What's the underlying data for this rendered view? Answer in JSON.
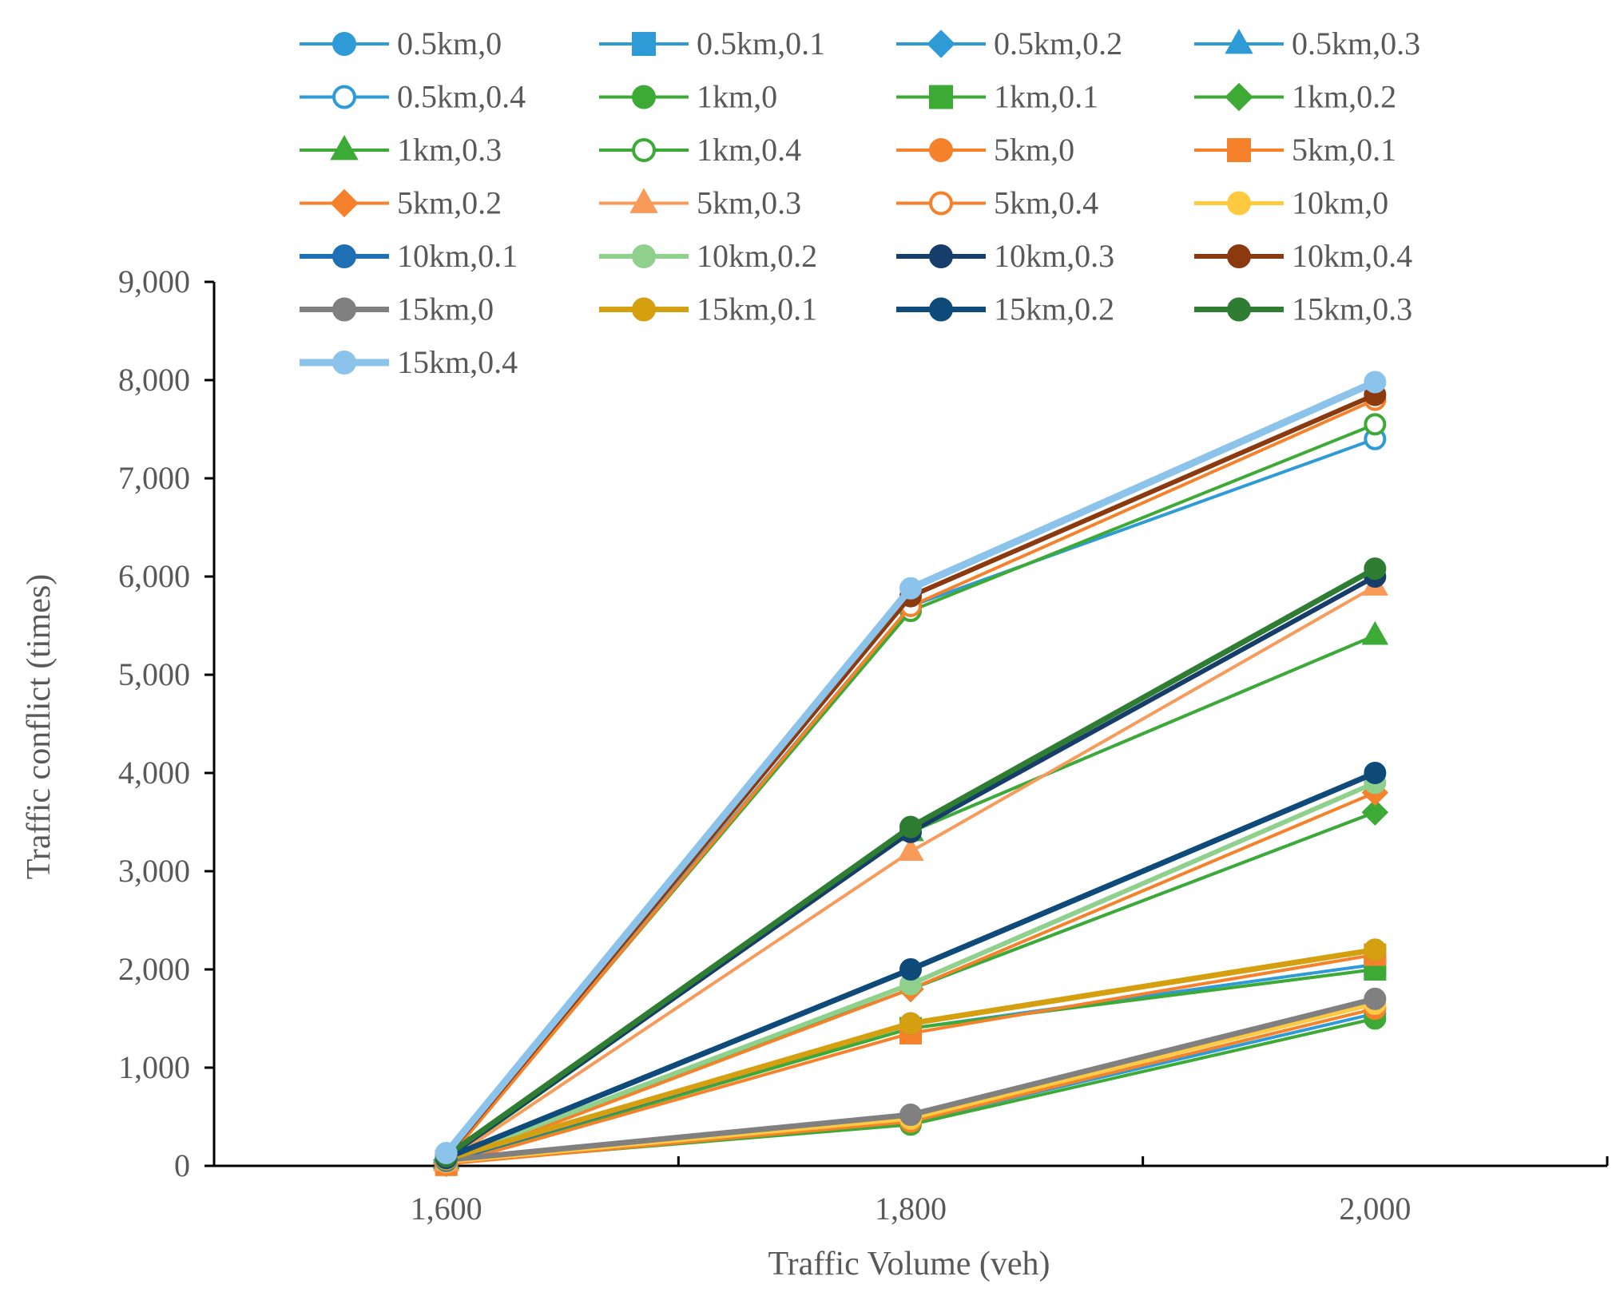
{
  "chart_data": {
    "type": "line",
    "title": "",
    "xlabel": "Traffic Volume (veh)",
    "ylabel": "Traffic conflict (times)",
    "x": [
      1600,
      1800,
      2000
    ],
    "x_tick_labels": [
      "1,600",
      "1,800",
      "2,000"
    ],
    "xlim": [
      1500,
      2100
    ],
    "ylim": [
      0,
      9000
    ],
    "y_tick_labels": [
      "0",
      "1,000",
      "2,000",
      "3,000",
      "4,000",
      "5,000",
      "6,000",
      "7,000",
      "8,000",
      "9,000"
    ],
    "grid": false,
    "legend_position": "top",
    "series": [
      {
        "name": "0.5km,0",
        "values": [
          50,
          450,
          1550
        ],
        "color": "#2E9BD6",
        "marker": "circle",
        "filled": true,
        "line_width": 4
      },
      {
        "name": "0.5km,0.1",
        "values": [
          50,
          1400,
          2050
        ],
        "color": "#2E9BD6",
        "marker": "square",
        "filled": true,
        "line_width": 4
      },
      {
        "name": "0.5km,0.2",
        "values": [
          60,
          1800,
          3600
        ],
        "color": "#2E9BD6",
        "marker": "diamond",
        "filled": true,
        "line_width": 4
      },
      {
        "name": "0.5km,0.3",
        "values": [
          70,
          3400,
          5400
        ],
        "color": "#2E9BD6",
        "marker": "triangle",
        "filled": true,
        "line_width": 4
      },
      {
        "name": "0.5km,0.4",
        "values": [
          80,
          5700,
          7400
        ],
        "color": "#2E9BD6",
        "marker": "circle",
        "filled": false,
        "line_width": 4
      },
      {
        "name": "1km,0",
        "values": [
          30,
          420,
          1500
        ],
        "color": "#3DAA35",
        "marker": "circle",
        "filled": true,
        "line_width": 4
      },
      {
        "name": "1km,0.1",
        "values": [
          30,
          1400,
          2000
        ],
        "color": "#3DAA35",
        "marker": "square",
        "filled": true,
        "line_width": 4
      },
      {
        "name": "1km,0.2",
        "values": [
          40,
          1800,
          3600
        ],
        "color": "#3DAA35",
        "marker": "diamond",
        "filled": true,
        "line_width": 4
      },
      {
        "name": "1km,0.3",
        "values": [
          60,
          3400,
          5400
        ],
        "color": "#3DAA35",
        "marker": "triangle",
        "filled": true,
        "line_width": 4
      },
      {
        "name": "1km,0.4",
        "values": [
          70,
          5650,
          7550
        ],
        "color": "#3DAA35",
        "marker": "circle",
        "filled": false,
        "line_width": 4
      },
      {
        "name": "5km,0",
        "values": [
          20,
          450,
          1600
        ],
        "color": "#F5822A",
        "marker": "circle",
        "filled": true,
        "line_width": 4
      },
      {
        "name": "5km,0.1",
        "values": [
          10,
          1350,
          2150
        ],
        "color": "#F5822A",
        "marker": "square",
        "filled": true,
        "line_width": 4
      },
      {
        "name": "5km,0.2",
        "values": [
          20,
          1800,
          3800
        ],
        "color": "#F5822A",
        "marker": "diamond",
        "filled": true,
        "line_width": 4
      },
      {
        "name": "5km,0.3",
        "values": [
          40,
          3200,
          5900
        ],
        "color": "#F79A5A",
        "marker": "triangle",
        "filled": true,
        "line_width": 4
      },
      {
        "name": "5km,0.4",
        "values": [
          50,
          5700,
          7800
        ],
        "color": "#F5822A",
        "marker": "circle",
        "filled": false,
        "line_width": 4
      },
      {
        "name": "10km,0",
        "values": [
          40,
          480,
          1650
        ],
        "color": "#FFC940",
        "marker": "circle",
        "filled": true,
        "line_width": 5
      },
      {
        "name": "10km,0.1",
        "values": [
          50,
          1450,
          2200
        ],
        "color": "#1F6FB5",
        "marker": "circle",
        "filled": true,
        "line_width": 6
      },
      {
        "name": "10km,0.2",
        "values": [
          60,
          1850,
          3900
        ],
        "color": "#8FD18C",
        "marker": "circle",
        "filled": true,
        "line_width": 6
      },
      {
        "name": "10km,0.3",
        "values": [
          80,
          3400,
          6000
        ],
        "color": "#173E6B",
        "marker": "circle",
        "filled": true,
        "line_width": 6
      },
      {
        "name": "10km,0.4",
        "values": [
          100,
          5800,
          7850
        ],
        "color": "#8B3A10",
        "marker": "circle",
        "filled": true,
        "line_width": 6
      },
      {
        "name": "15km,0",
        "values": [
          60,
          520,
          1700
        ],
        "color": "#808080",
        "marker": "circle",
        "filled": true,
        "line_width": 7
      },
      {
        "name": "15km,0.1",
        "values": [
          70,
          1450,
          2200
        ],
        "color": "#D4A010",
        "marker": "circle",
        "filled": true,
        "line_width": 7
      },
      {
        "name": "15km,0.2",
        "values": [
          80,
          2000,
          4000
        ],
        "color": "#0E4A7A",
        "marker": "circle",
        "filled": true,
        "line_width": 7
      },
      {
        "name": "15km,0.3",
        "values": [
          100,
          3450,
          6080
        ],
        "color": "#2E7D32",
        "marker": "circle",
        "filled": true,
        "line_width": 7
      },
      {
        "name": "15km,0.4",
        "values": [
          130,
          5880,
          7980
        ],
        "color": "#8CC3EA",
        "marker": "circle",
        "filled": true,
        "line_width": 9
      }
    ]
  }
}
